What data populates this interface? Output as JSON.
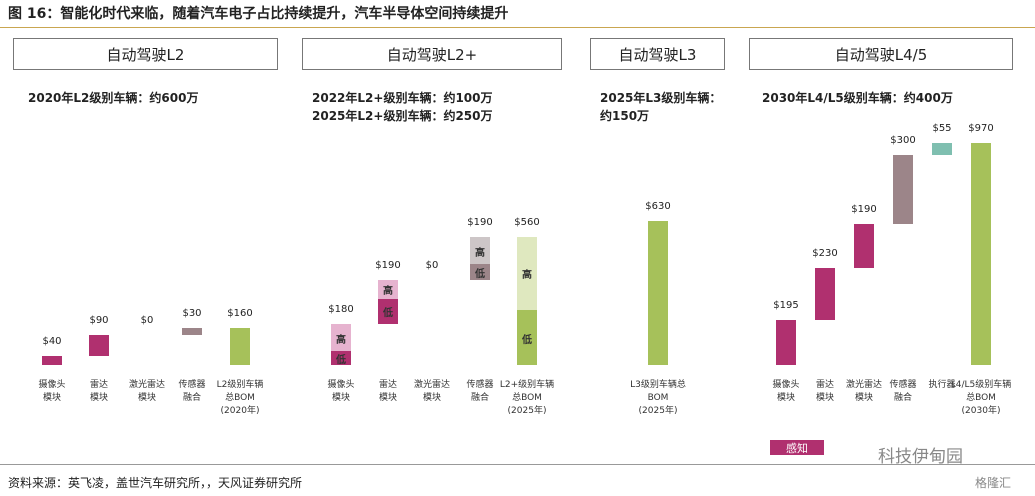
{
  "caption": "图 16：智能化时代来临，随着汽车电子占比持续提升，汽车半导体空间持续提升",
  "source": "资料来源：英飞凌，盖世汽车研究所，，天风证券研究所",
  "legend": [
    {
      "name": "感知",
      "color": "#b0306f"
    }
  ],
  "watermark": [
    "科技伊甸园",
    "格隆汇"
  ],
  "chart_data": [
    {
      "type": "waterfall",
      "title": "自动驾驶L2",
      "subtitle": [
        "2020年L2级别车辆：约600万"
      ],
      "categories": [
        "摄像头\n模块",
        "雷达\n模块",
        "激光雷达\n模块",
        "传感器\n融合",
        "L2级别车辆\n总BOM\n(2020年)"
      ],
      "values": [
        40,
        90,
        0,
        30,
        160
      ],
      "value_labels": [
        "$40",
        "$90",
        "$0",
        "$30",
        "$160"
      ],
      "colors": [
        "#b0306f",
        "#b0306f",
        "#b0306f",
        "#9c8589",
        "#a6c15a"
      ]
    },
    {
      "type": "waterfall",
      "title": "自动驾驶L2+",
      "subtitle": [
        "2022年L2+级别车辆：约100万",
        "2025年L2+级别车辆：约250万"
      ],
      "categories": [
        "摄像头\n模块",
        "雷达\n模块",
        "激光雷达\n模块",
        "传感器\n融合",
        "L2+级别车辆\n总BOM\n(2025年)"
      ],
      "values": [
        180,
        190,
        0,
        190,
        560
      ],
      "value_labels": [
        "$180",
        "$190",
        "$0",
        "$190",
        "$560"
      ],
      "series": [
        {
          "name": "低",
          "colors": [
            "#b0306f",
            "#b0306f",
            "#b0306f",
            "#9c8589",
            "#a6c15a"
          ],
          "values": [
            60,
            110,
            0,
            70,
            240
          ]
        },
        {
          "name": "高",
          "colors": [
            "#e6b3cf",
            "#e6b3cf",
            "#e6b3cf",
            "#cdc6c7",
            "#dfe8bf"
          ],
          "values": [
            120,
            80,
            0,
            120,
            320
          ]
        }
      ]
    },
    {
      "type": "waterfall",
      "title": "自动驾驶L3",
      "subtitle": [
        "2025年L3级别车辆：",
        "约150万"
      ],
      "categories": [
        "L3级别车辆总\nBOM\n(2025年)"
      ],
      "values": [
        630
      ],
      "value_labels": [
        "$630"
      ],
      "colors": [
        "#a6c15a"
      ]
    },
    {
      "type": "waterfall",
      "title": "自动驾驶L4/5",
      "subtitle": [
        "2030年L4/L5级别车辆：约400万"
      ],
      "categories": [
        "摄像头\n模块",
        "雷达\n模块",
        "激光雷达\n模块",
        "传感器\n融合",
        "执行器",
        "L4/L5级别车辆\n总BOM\n(2030年)"
      ],
      "values": [
        195,
        230,
        190,
        300,
        55,
        970
      ],
      "value_labels": [
        "$195",
        "$230",
        "$190",
        "$300",
        "$55",
        "$970"
      ],
      "colors": [
        "#b0306f",
        "#b0306f",
        "#b0306f",
        "#9c8589",
        "#7fbfb0",
        "#a6c15a"
      ]
    }
  ]
}
